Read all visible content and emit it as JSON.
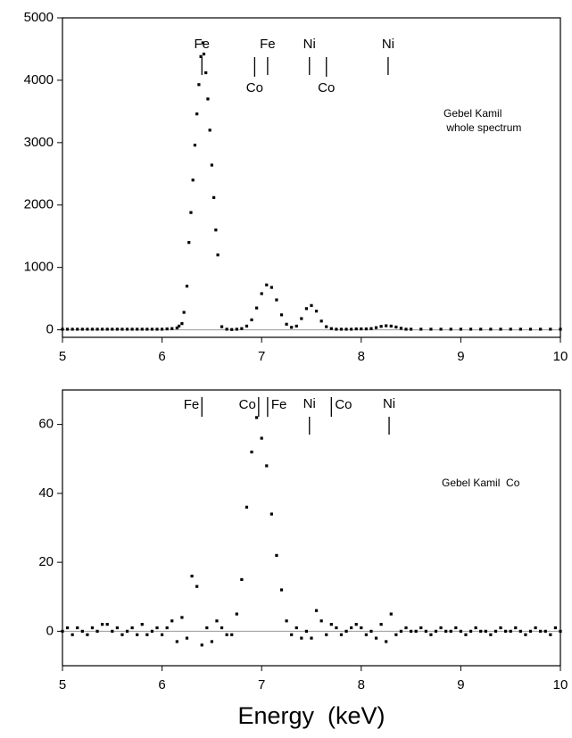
{
  "chart_data": [
    {
      "type": "scatter",
      "note_lines": [
        "Gebel Kamil",
        " whole spectrum"
      ],
      "annotations": [
        {
          "text": "Fe",
          "x": 6.4,
          "position": "above"
        },
        {
          "text": "Fe",
          "x": 7.06,
          "position": "above"
        },
        {
          "text": "Ni",
          "x": 7.48,
          "position": "above"
        },
        {
          "text": "Ni",
          "x": 8.27,
          "position": "above"
        },
        {
          "text": "Co",
          "x": 6.93,
          "position": "below"
        },
        {
          "text": "Co",
          "x": 7.65,
          "position": "below"
        }
      ],
      "x": [
        5.0,
        5.05,
        5.1,
        5.15,
        5.2,
        5.25,
        5.3,
        5.35,
        5.4,
        5.45,
        5.5,
        5.55,
        5.6,
        5.65,
        5.7,
        5.75,
        5.8,
        5.85,
        5.9,
        5.95,
        6.0,
        6.05,
        6.1,
        6.15,
        6.17,
        6.2,
        6.22,
        6.25,
        6.27,
        6.29,
        6.31,
        6.33,
        6.35,
        6.37,
        6.39,
        6.41,
        6.42,
        6.44,
        6.46,
        6.48,
        6.5,
        6.52,
        6.54,
        6.56,
        6.6,
        6.65,
        6.7,
        6.75,
        6.8,
        6.85,
        6.9,
        6.95,
        7.0,
        7.05,
        7.1,
        7.15,
        7.2,
        7.25,
        7.3,
        7.35,
        7.4,
        7.45,
        7.5,
        7.55,
        7.6,
        7.65,
        7.7,
        7.75,
        7.8,
        7.85,
        7.9,
        7.95,
        8.0,
        8.05,
        8.1,
        8.15,
        8.2,
        8.25,
        8.3,
        8.35,
        8.4,
        8.45,
        8.5,
        8.6,
        8.7,
        8.8,
        8.9,
        9.0,
        9.1,
        9.2,
        9.3,
        9.4,
        9.5,
        9.6,
        9.7,
        9.8,
        9.9,
        10.0
      ],
      "color": "#000000",
      "values": [
        10,
        10,
        10,
        10,
        10,
        10,
        10,
        10,
        10,
        10,
        10,
        10,
        10,
        10,
        10,
        10,
        10,
        10,
        10,
        10,
        10,
        15,
        20,
        30,
        60,
        100,
        280,
        700,
        1400,
        1880,
        2400,
        2960,
        3460,
        3930,
        4380,
        4600,
        4420,
        4120,
        3700,
        3200,
        2640,
        2120,
        1600,
        1200,
        50,
        10,
        5,
        10,
        20,
        60,
        160,
        350,
        580,
        720,
        680,
        480,
        240,
        90,
        40,
        60,
        180,
        340,
        390,
        300,
        140,
        50,
        20,
        10,
        10,
        10,
        10,
        15,
        15,
        15,
        20,
        35,
        55,
        65,
        60,
        45,
        25,
        10,
        10,
        10,
        10,
        10,
        10,
        10,
        10,
        10,
        10,
        10,
        10,
        10,
        10,
        10,
        10,
        10
      ],
      "xlim": [
        5,
        10
      ],
      "ylim": [
        -120,
        5000
      ],
      "xticks": [
        5,
        6,
        7,
        8,
        9,
        10
      ],
      "yticks": [
        0,
        1000,
        2000,
        3000,
        4000,
        5000
      ]
    },
    {
      "type": "scatter",
      "note_lines": [
        "Gebel Kamil  Co"
      ],
      "annotations": [
        {
          "text": "Fe",
          "x": 6.4,
          "position": "left"
        },
        {
          "text": "Co",
          "x": 6.97,
          "position": "left"
        },
        {
          "text": "Fe",
          "x": 7.06,
          "position": "right"
        },
        {
          "text": "Ni",
          "x": 7.48,
          "position": "above"
        },
        {
          "text": "Co",
          "x": 7.7,
          "position": "right"
        },
        {
          "text": "Ni",
          "x": 8.28,
          "position": "above"
        }
      ],
      "xlabel": "Energy  (keV)",
      "x": [
        5.0,
        5.05,
        5.1,
        5.15,
        5.2,
        5.25,
        5.3,
        5.35,
        5.4,
        5.45,
        5.5,
        5.55,
        5.6,
        5.65,
        5.7,
        5.75,
        5.8,
        5.85,
        5.9,
        5.95,
        6.0,
        6.05,
        6.1,
        6.15,
        6.2,
        6.25,
        6.3,
        6.35,
        6.4,
        6.45,
        6.5,
        6.55,
        6.6,
        6.65,
        6.7,
        6.75,
        6.8,
        6.85,
        6.9,
        6.95,
        7.0,
        7.05,
        7.1,
        7.15,
        7.2,
        7.25,
        7.3,
        7.35,
        7.4,
        7.45,
        7.5,
        7.55,
        7.6,
        7.65,
        7.7,
        7.75,
        7.8,
        7.85,
        7.9,
        7.95,
        8.0,
        8.05,
        8.1,
        8.15,
        8.2,
        8.25,
        8.3,
        8.35,
        8.4,
        8.45,
        8.5,
        8.55,
        8.6,
        8.65,
        8.7,
        8.75,
        8.8,
        8.85,
        8.9,
        8.95,
        9.0,
        9.05,
        9.1,
        9.15,
        9.2,
        9.25,
        9.3,
        9.35,
        9.4,
        9.45,
        9.5,
        9.55,
        9.6,
        9.65,
        9.7,
        9.75,
        9.8,
        9.85,
        9.9,
        9.95,
        10.0
      ],
      "color": "#000000",
      "values": [
        0,
        1,
        -1,
        1,
        0,
        -1,
        1,
        0,
        2,
        2,
        0,
        1,
        -1,
        0,
        1,
        -1,
        2,
        -1,
        0,
        1,
        -1,
        1,
        3,
        -3,
        4,
        -2,
        16,
        13,
        -4,
        1,
        -3,
        3,
        1,
        -1,
        -1,
        5,
        15,
        36,
        52,
        62,
        56,
        48,
        34,
        22,
        12,
        3,
        -1,
        1,
        -2,
        0,
        -2,
        6,
        3,
        -1,
        2,
        1,
        -1,
        0,
        1,
        2,
        1,
        -1,
        0,
        -2,
        2,
        -3,
        5,
        -1,
        0,
        1,
        0,
        0,
        1,
        0,
        -1,
        0,
        1,
        0,
        0,
        1,
        0,
        -1,
        0,
        1,
        0,
        0,
        -1,
        0,
        1,
        0,
        0,
        1,
        0,
        -1,
        0,
        1,
        0,
        0,
        -1,
        1,
        0
      ],
      "xlim": [
        5,
        10
      ],
      "ylim": [
        -10,
        70
      ],
      "xticks": [
        5,
        6,
        7,
        8,
        9,
        10
      ],
      "yticks": [
        0,
        20,
        40,
        60
      ]
    }
  ]
}
